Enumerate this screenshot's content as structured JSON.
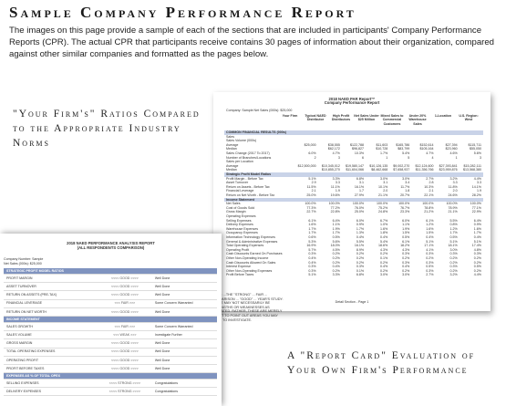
{
  "title": "Sample Company Performance Report",
  "intro": "The images on this page provide a sample of each of the sections that are included in participants' Company Performance Reports (CPR). The actual CPR that participants receive contains 30 pages of information about their organization, compared against other similar companies and formatted as the pages below.",
  "headings": {
    "ratios": "\"Your Firm's\" Ratios Compared to the Appropriate Industry Norms",
    "report_card": "A \"Report Card\" Evaluation of Your Own Firm's Performance"
  },
  "ratios_sheet": {
    "title_line1": "2018 NAED PAR Report™",
    "title_line2": "Company Performance Report",
    "meta": "Company: Sample  Net Sales (000s): $25,000",
    "columns": [
      "Your Firm",
      "Typical NAED Distributor",
      "High Profit Distributors",
      "Net Sales Under $25 Million",
      "Mixed Sales to Commercial Customers",
      "Under 20% Warehouse Sales",
      "1-Location",
      "U.S. Region: West"
    ],
    "rows": [
      {
        "label": "COMMON FINANCIAL RESULTS (000s)",
        "band": true,
        "values": []
      },
      {
        "label": "Sales",
        "band": false,
        "values": []
      },
      {
        "label": "Sales Volume (000s)",
        "band": false,
        "values": []
      },
      {
        "label": "Average",
        "band": false,
        "values": [
          "$25,000",
          "$38,555",
          "$122,788",
          "$11,603",
          "$165,786",
          "$152,614",
          "$27,394",
          "$115,711"
        ]
      },
      {
        "label": "Median",
        "band": false,
        "values": [
          "",
          "$62,172",
          "$96,827",
          "$10,728",
          "$83,799",
          "$105,164",
          "$23,960",
          "$55,050"
        ]
      },
      {
        "label": "Sales Change (2017 To 2017)",
        "band": false,
        "values": [
          "6.0%",
          "4.7%",
          "10.3%",
          "1.7%",
          "5.4%",
          "4.7%",
          "4.6%",
          "5.6%"
        ]
      },
      {
        "label": "Number of Branches/Locations",
        "band": false,
        "values": [
          "2",
          "3",
          "6",
          "1",
          "5",
          "4",
          "1",
          "3"
        ]
      },
      {
        "label": "Sales per Location",
        "band": false,
        "values": []
      },
      {
        "label": "Average",
        "band": false,
        "values": [
          "$12,500,000",
          "$10,345,012",
          "$19,580,147",
          "$10,126,135",
          "$9,002,270",
          "$12,124,600",
          "$27,393,841",
          "$15,282,111"
        ]
      },
      {
        "label": "Median",
        "band": false,
        "values": [
          "",
          "$10,855,270",
          "$11,604,066",
          "$8,462,668",
          "$7,658,937",
          "$11,356,766",
          "$23,959,876",
          "$13,568,380"
        ]
      },
      {
        "label": "Strategic Profit Model Ratios",
        "band": true,
        "values": []
      },
      {
        "label": "Profit Margin - Before Tax",
        "band": false,
        "values": [
          "5.1%",
          "3.3%",
          "6.8%",
          "3.0%",
          "3.0%",
          "2.7%",
          "3.2%",
          "4.4%"
        ]
      },
      {
        "label": "Asset Turnover",
        "band": false,
        "values": [
          "2.9",
          "3.3",
          "3.1",
          "3.1",
          "3.4",
          "2.8",
          "3.3",
          "3.3"
        ]
      },
      {
        "label": "Return on Assets - Before Tax",
        "band": false,
        "values": [
          "11.5%",
          "11.1%",
          "16.1%",
          "10.1%",
          "11.7%",
          "10.3%",
          "11.8%",
          "14.1%"
        ]
      },
      {
        "label": "Financial Leverage",
        "band": false,
        "values": [
          "2.1",
          "1.9",
          "1.7",
          "2.0",
          "1.8",
          "2.1",
          "2.0",
          "1.9"
        ]
      },
      {
        "label": "Return on Net Worth - Before Tax",
        "band": false,
        "values": [
          "25.0%",
          "19.6%",
          "27.9%",
          "21.1%",
          "20.7%",
          "22.1%",
          "24.6%",
          "28.2%"
        ]
      },
      {
        "label": "Income Statement",
        "band": true,
        "values": []
      },
      {
        "label": "Net Sales",
        "band": false,
        "values": [
          "100.0%",
          "100.0%",
          "100.0%",
          "100.0%",
          "100.0%",
          "100.0%",
          "100.0%",
          "100.0%"
        ]
      },
      {
        "label": "Cost of Goods Sold",
        "band": false,
        "values": [
          "77.3%",
          "77.2%",
          "76.0%",
          "75.2%",
          "76.7%",
          "78.8%",
          "78.9%",
          "77.1%"
        ]
      },
      {
        "label": "Gross Margin",
        "band": false,
        "values": [
          "22.7%",
          "22.8%",
          "25.0%",
          "24.8%",
          "23.3%",
          "21.2%",
          "21.1%",
          "22.9%"
        ]
      },
      {
        "label": "Operating Expenses",
        "band": false,
        "values": []
      },
      {
        "label": "Selling Expenses",
        "band": false,
        "values": [
          "6.1%",
          "6.4%",
          "6.0%",
          "6.7%",
          "6.0%",
          "6.1%",
          "5.5%",
          "6.4%"
        ]
      },
      {
        "label": "Delivery Expenses",
        "band": false,
        "values": [
          "1.6%",
          "1.1%",
          "0.9%",
          "1.0%",
          "1.1%",
          "1.2%",
          "0.8%",
          "0.9%"
        ]
      },
      {
        "label": "Warehouse Expenses",
        "band": false,
        "values": [
          "1.7%",
          "1.9%",
          "1.7%",
          "1.6%",
          "1.9%",
          "1.6%",
          "1.2%",
          "1.6%"
        ]
      },
      {
        "label": "Occupancy Expenses",
        "band": false,
        "values": [
          "1.7%",
          "1.7%",
          "1.3%",
          "1.8%",
          "1.5%",
          "1.5%",
          "1.7%",
          "1.7%"
        ]
      },
      {
        "label": "Information Technology Expenses",
        "band": false,
        "values": [
          "0.6%",
          "0.5%",
          "0.4%",
          "0.4%",
          "0.5%",
          "0.4%",
          "0.5%",
          "0.4%"
        ]
      },
      {
        "label": "General & Administrative Expenses",
        "band": false,
        "values": [
          "5.3%",
          "5.6%",
          "5.5%",
          "5.4%",
          "6.1%",
          "5.1%",
          "5.1%",
          "5.1%"
        ]
      },
      {
        "label": "Total Operating Expenses",
        "band": false,
        "values": [
          "16.9%",
          "18.0%",
          "16.1%",
          "18.6%",
          "18.2%",
          "17.1%",
          "18.1%",
          "17.4%"
        ]
      },
      {
        "label": "Operating Profit",
        "band": false,
        "values": [
          "5.7%",
          "4.5%",
          "8.9%",
          "4.3%",
          "4.3%",
          "4.1%",
          "3.0%",
          "4.8%"
        ]
      },
      {
        "label": "Cash Discounts Earned On Purchases",
        "band": false,
        "values": [
          "0.3%",
          "0.2%",
          "0.2%",
          "0.2%",
          "0.3%",
          "0.3%",
          "0.3%",
          "0.3%"
        ]
      },
      {
        "label": "Other Non-Operating Income",
        "band": false,
        "values": [
          "0.4%",
          "0.2%",
          "0.2%",
          "0.1%",
          "0.2%",
          "0.2%",
          "0.2%",
          "0.2%"
        ]
      },
      {
        "label": "Cash Discounts Allowed On Sales",
        "band": false,
        "values": [
          "0.4%",
          "0.2%",
          "0.2%",
          "0.2%",
          "0.3%",
          "0.3%",
          "0.2%",
          "0.2%"
        ]
      },
      {
        "label": "Interest Expense",
        "band": false,
        "values": [
          "0.3%",
          "0.4%",
          "0.3%",
          "0.4%",
          "0.4%",
          "0.5%",
          "0.3%",
          "0.5%"
        ]
      },
      {
        "label": "Other Non-Operating Expenses",
        "band": false,
        "values": [
          "0.3%",
          "0.2%",
          "0.1%",
          "0.2%",
          "0.2%",
          "0.3%",
          "0.2%",
          "0.2%"
        ]
      },
      {
        "label": "Profit Before Taxes",
        "band": false,
        "values": [
          "5.1%",
          "3.3%",
          "6.8%",
          "3.0%",
          "3.0%",
          "2.7%",
          "3.2%",
          "4.4%"
        ]
      }
    ],
    "footer": "Detail Section - Page 1"
  },
  "card_sheet": {
    "title_line1": "2018 NAED PERFORMANCE ANALYSIS REPORT",
    "title_line2": "(ALL RESPONDENTS COMPARISON)",
    "meta_line1": "Company Number: Sample",
    "meta_line2": "Net Sales (000s): $25,000",
    "rows": [
      {
        "label": "STRATEGIC PROFIT MODEL RATIOS",
        "band": true,
        "indicator": "",
        "evaluation": ""
      },
      {
        "label": "PROFIT MARGIN",
        "band": false,
        "indicator": "<<<< GOOD >>>>",
        "evaluation": "Well Done"
      },
      {
        "label": "ASSET TURNOVER",
        "band": false,
        "indicator": "<<<< GOOD >>>>",
        "evaluation": "Well Done"
      },
      {
        "label": "RETURN ON ASSETS (PRE-TAX)",
        "band": false,
        "indicator": "<<<< GOOD >>>>",
        "evaluation": "Well Done"
      },
      {
        "label": "FINANCIAL LEVERAGE",
        "band": false,
        "indicator": "<<< FAIR >>>",
        "evaluation": "Some Concern Warranted"
      },
      {
        "label": "RETURN ON NET WORTH",
        "band": false,
        "indicator": "<<<< GOOD >>>>",
        "evaluation": "Well Done"
      },
      {
        "label": "INCOME STATEMENT",
        "band": true,
        "indicator": "",
        "evaluation": ""
      },
      {
        "label": "SALES GROWTH",
        "band": false,
        "indicator": "<<< FAIR >>>",
        "evaluation": "Some Concern Warranted"
      },
      {
        "label": "SALES VOLUME",
        "band": false,
        "indicator": "<<< WEAK >>>",
        "evaluation": "Investigate Further"
      },
      {
        "label": "GROSS MARGIN",
        "band": false,
        "indicator": "<<<< GOOD >>>>",
        "evaluation": "Well Done"
      },
      {
        "label": "TOTAL OPERATING EXPENSES",
        "band": false,
        "indicator": "<<<< GOOD >>>>",
        "evaluation": "Well Done"
      },
      {
        "label": "OPERATING PROFIT",
        "band": false,
        "indicator": "<<<< GOOD >>>>",
        "evaluation": "Well Done"
      },
      {
        "label": "PROFIT BEFORE TAXES",
        "band": false,
        "indicator": "<<<< GOOD >>>>",
        "evaluation": "Well Done"
      },
      {
        "label": "EXPENSES AS % OF TOTAL OPEX",
        "band": true,
        "indicator": "",
        "evaluation": ""
      },
      {
        "label": "SELLING EXPENSES",
        "band": false,
        "indicator": "<<<< STRONG >>>>",
        "evaluation": "Congratulations"
      },
      {
        "label": "DELIVERY EXPENSES",
        "band": false,
        "indicator": "<<<< STRONG >>>>",
        "evaluation": "Congratulations"
      }
    ],
    "notes": "NOTE: ...THE \"STRONG\" ... FAIR ... COMPARISON ... \"GOOD\" ... YEAR'S STUDY. THESE MAY NOT NECESSARILY BE STRENGTHS OR WEAKNESSES AS INDICATED. RATHER, THESE ARE MERELY MEANT TO POINT OUT AREAS YOU MAY WANT TO INVESTIGATE."
  }
}
